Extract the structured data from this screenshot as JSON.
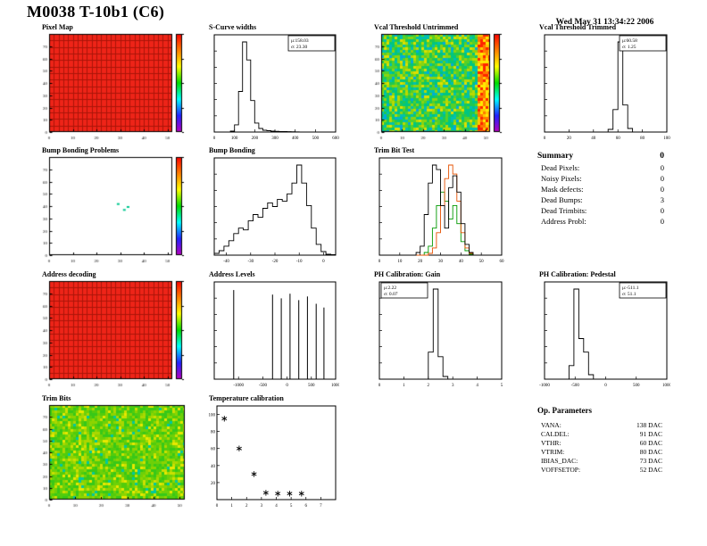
{
  "page": {
    "title": "M0038 T-10b1 (C6)",
    "date": "Wed May 31 13:34:22 2006"
  },
  "summary": {
    "title": "Summary",
    "value": "0",
    "rows": [
      {
        "label": "Dead Pixels:",
        "value": "0"
      },
      {
        "label": "Noisy Pixels:",
        "value": "0"
      },
      {
        "label": "Mask defects:",
        "value": "0"
      },
      {
        "label": "Dead Bumps:",
        "value": "3"
      },
      {
        "label": "Dead Trimbits:",
        "value": "0"
      },
      {
        "label": "Address Probl:",
        "value": "0"
      }
    ]
  },
  "op_parameters": {
    "title": "Op. Parameters",
    "rows": [
      {
        "label": "VANA:",
        "value": "138 DAC"
      },
      {
        "label": "CALDEL:",
        "value": "91 DAC"
      },
      {
        "label": "VTHR:",
        "value": "60 DAC"
      },
      {
        "label": "VTRIM:",
        "value": "80 DAC"
      },
      {
        "label": "IBIAS_DAC:",
        "value": "73 DAC"
      },
      {
        "label": "VOFFSETOP:",
        "value": "52 DAC"
      }
    ]
  },
  "palettes": {
    "rainbow": [
      "#ff0000",
      "#ff7f00",
      "#ffff00",
      "#00dd00",
      "#00ffff",
      "#2222ff",
      "#bb00bb"
    ]
  },
  "chart_data": [
    {
      "id": "pixel_map",
      "title": "Pixel Map",
      "type": "heatmap",
      "style": "solid",
      "base_color": "#ee2418",
      "grid_color": "#aa1408",
      "grid": [
        26,
        15
      ],
      "xrange": [
        0,
        52
      ],
      "xticks": [
        0,
        10,
        20,
        30,
        40,
        50
      ],
      "yrange": [
        0,
        80
      ],
      "yticks": [
        0,
        10,
        20,
        30,
        40,
        50,
        60,
        70
      ],
      "colorbar": true
    },
    {
      "id": "scurve_widths",
      "title": "S-Curve widths",
      "type": "histogram",
      "xrange": [
        0,
        600
      ],
      "xticks": [
        0,
        100,
        200,
        300,
        400,
        500,
        600
      ],
      "bins": [
        0,
        0,
        0,
        0,
        0.01,
        0.08,
        0.45,
        1.0,
        0.8,
        0.35,
        0.1,
        0.04,
        0.02,
        0.015,
        0.01,
        0.008,
        0.006,
        0.005,
        0.004,
        0.003,
        0.002,
        0,
        0,
        0,
        0,
        0,
        0,
        0,
        0,
        0
      ],
      "stats": {
        "pos": "right",
        "lines": [
          "μ:158.03",
          "σ: 23.30"
        ]
      }
    },
    {
      "id": "vcal_untrimmed",
      "title": "Vcal Threshold Untrimmed",
      "type": "heatmap",
      "style": "noise",
      "seed": 12345,
      "palette": [
        "#00c0b0",
        "#00c680",
        "#20c850",
        "#55d028",
        "#8ad410",
        "#b8da00",
        "#dce000",
        "#00aadc"
      ],
      "weights": [
        0.12,
        0.17,
        0.2,
        0.18,
        0.13,
        0.1,
        0.06,
        0.04
      ],
      "hot_colors": [
        "#ff2400",
        "#ff7800",
        "#ffc800",
        "#ffea00"
      ],
      "hot_edge": 5,
      "xrange": [
        0,
        52
      ],
      "xticks": [
        0,
        10,
        20,
        30,
        40,
        50
      ],
      "yrange": [
        0,
        80
      ],
      "yticks": [
        0,
        10,
        20,
        30,
        40,
        50,
        60,
        70
      ],
      "colorbar": true
    },
    {
      "id": "vcal_trimmed",
      "title": "Vcal Threshold Trimmed",
      "type": "histogram",
      "xrange": [
        0,
        100
      ],
      "xticks": [
        0,
        20,
        40,
        60,
        80,
        100
      ],
      "bins": [
        0,
        0,
        0,
        0,
        0,
        0,
        0,
        0,
        0,
        0,
        0,
        0,
        0,
        0.03,
        0.25,
        1.0,
        0.3,
        0.04,
        0,
        0,
        0,
        0,
        0,
        0,
        0
      ],
      "stats": {
        "pos": "right",
        "lines": [
          "μ:60.58",
          "σ: 1.25"
        ]
      }
    },
    {
      "id": "bump_problems",
      "title": "Bump Bonding Problems",
      "type": "heatmap",
      "style": "blank",
      "mark_color": "#00c890",
      "marks": [
        [
          0.55,
          0.47
        ],
        [
          0.6,
          0.53
        ],
        [
          0.63,
          0.5
        ]
      ],
      "xrange": [
        0,
        52
      ],
      "xticks": [
        0,
        10,
        20,
        30,
        40,
        50
      ],
      "yrange": [
        0,
        80
      ],
      "yticks": [
        0,
        10,
        20,
        30,
        40,
        50,
        60,
        70
      ],
      "colorbar": true
    },
    {
      "id": "bump_bonding",
      "title": "Bump Bonding",
      "type": "histogram",
      "xrange": [
        -45,
        5
      ],
      "xticks": [
        -40,
        -30,
        -20,
        -10,
        0
      ],
      "bins": [
        0.02,
        0.05,
        0.1,
        0.16,
        0.24,
        0.3,
        0.28,
        0.38,
        0.45,
        0.42,
        0.52,
        0.58,
        0.54,
        0.62,
        0.6,
        0.68,
        0.8,
        1.0,
        0.8,
        0.55,
        0.3,
        0.12,
        0.04,
        0.01,
        0.005
      ]
    },
    {
      "id": "trim_bit_test",
      "title": "Trim Bit Test",
      "type": "multi_histogram",
      "xrange": [
        0,
        60
      ],
      "xticks": [
        0,
        10,
        20,
        30,
        40,
        50,
        60
      ],
      "series": [
        {
          "color": "#009900",
          "bins": [
            0,
            0,
            0,
            0,
            0,
            0,
            0,
            0,
            0,
            0,
            0,
            0.03,
            0.1,
            0.3,
            0.55,
            0.7,
            0.6,
            0.4,
            0.55,
            0.35,
            0.15,
            0.05,
            0.01,
            0,
            0,
            0,
            0,
            0,
            0,
            0
          ]
        },
        {
          "color": "#e55000",
          "bins": [
            0,
            0,
            0,
            0,
            0,
            0,
            0,
            0,
            0,
            0,
            0,
            0,
            0.02,
            0.08,
            0.25,
            0.55,
            0.85,
            1.0,
            0.9,
            0.6,
            0.25,
            0.08,
            0.02,
            0,
            0,
            0,
            0,
            0,
            0,
            0
          ]
        },
        {
          "color": "#000000",
          "bins": [
            0,
            0,
            0,
            0,
            0,
            0,
            0,
            0,
            0,
            0.03,
            0.1,
            0.45,
            0.8,
            1.0,
            0.95,
            0.55,
            0.3,
            0.75,
            0.88,
            0.7,
            0.35,
            0.12,
            0.03,
            0,
            0,
            0,
            0,
            0,
            0,
            0
          ]
        }
      ]
    },
    {
      "id": "address_decoding",
      "title": "Address decoding",
      "type": "heatmap",
      "style": "solid",
      "base_color": "#ee2418",
      "grid_color": "#aa1408",
      "grid": [
        26,
        15
      ],
      "xrange": [
        0,
        52
      ],
      "xticks": [
        0,
        10,
        20,
        30,
        40,
        50
      ],
      "yrange": [
        0,
        80
      ],
      "yticks": [
        0,
        10,
        20,
        30,
        40,
        50,
        60,
        70
      ],
      "colorbar": true
    },
    {
      "id": "address_levels",
      "title": "Address Levels",
      "type": "spikes",
      "xrange": [
        -1500,
        1000
      ],
      "xticks": [
        -1000,
        -500,
        0,
        500,
        1000
      ],
      "spikes": [
        {
          "x": -1100,
          "h": 0.97
        },
        {
          "x": -300,
          "h": 0.92
        },
        {
          "x": -120,
          "h": 0.88
        },
        {
          "x": 60,
          "h": 0.93
        },
        {
          "x": 240,
          "h": 0.86
        },
        {
          "x": 420,
          "h": 0.9
        },
        {
          "x": 600,
          "h": 0.82
        },
        {
          "x": 760,
          "h": 0.78
        }
      ]
    },
    {
      "id": "ph_gain",
      "title": "PH Calibration: Gain",
      "type": "histogram",
      "xrange": [
        0,
        5
      ],
      "xticks": [
        0,
        1,
        2,
        3,
        4,
        5
      ],
      "bins": [
        0,
        0,
        0,
        0,
        0,
        0,
        0,
        0,
        0,
        0,
        0.3,
        1.0,
        0.25,
        0.03,
        0,
        0,
        0,
        0,
        0,
        0,
        0,
        0,
        0,
        0,
        0
      ],
      "stats": {
        "pos": "left",
        "lines": [
          "μ:2.22",
          "σ: 0.07"
        ]
      }
    },
    {
      "id": "ph_pedestal",
      "title": "PH Calibration: Pedestal",
      "type": "histogram",
      "xrange": [
        -1000,
        1000
      ],
      "xticks": [
        -1000,
        -500,
        0,
        500,
        1000
      ],
      "bins": [
        0,
        0,
        0,
        0,
        0,
        0.15,
        1.0,
        0.45,
        0.3,
        0.05,
        0,
        0,
        0,
        0,
        0,
        0,
        0,
        0,
        0,
        0,
        0,
        0,
        0,
        0,
        0
      ],
      "stats": {
        "pos": "right",
        "lines": [
          "μ:-511.1",
          "σ: 51.1"
        ]
      }
    },
    {
      "id": "trim_bits",
      "title": "Trim Bits",
      "type": "heatmap",
      "style": "noise",
      "seed": 777,
      "palette": [
        "#38c818",
        "#52cc0c",
        "#6ed008",
        "#8cd400",
        "#aad800",
        "#cce000",
        "#e8e800",
        "#00c8a0"
      ],
      "weights": [
        0.2,
        0.2,
        0.18,
        0.14,
        0.1,
        0.08,
        0.06,
        0.04
      ],
      "hot_colors": [],
      "hot_edge": 0,
      "xrange": [
        0,
        52
      ],
      "xticks": [
        0,
        10,
        20,
        30,
        40,
        50
      ],
      "yrange": [
        0,
        80
      ],
      "yticks": [
        0,
        10,
        20,
        30,
        40,
        50,
        60,
        70
      ],
      "colorbar": false
    },
    {
      "id": "temp_cal",
      "title": "Temperature calibration",
      "type": "scatter",
      "xrange": [
        0,
        8
      ],
      "xticks": [
        0,
        1,
        2,
        3,
        4,
        5,
        6,
        7
      ],
      "yrange": [
        0,
        110
      ],
      "yticks": [
        20,
        40,
        60,
        80,
        100
      ],
      "marker": "asterisk",
      "points": [
        [
          0.5,
          95
        ],
        [
          1.5,
          60
        ],
        [
          2.5,
          30
        ],
        [
          3.3,
          8
        ],
        [
          4.1,
          7
        ],
        [
          4.9,
          7
        ],
        [
          5.7,
          7
        ]
      ]
    }
  ]
}
